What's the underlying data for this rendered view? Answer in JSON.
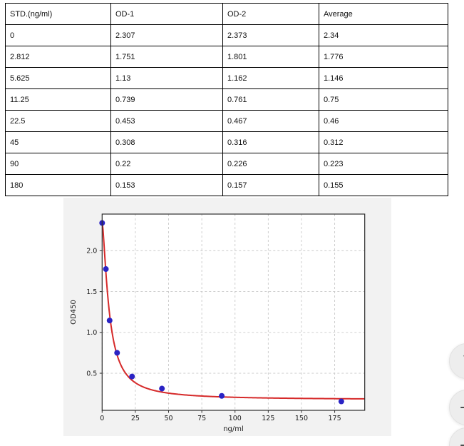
{
  "table": {
    "headers": [
      "STD.(ng/ml)",
      "OD-1",
      "OD-2",
      "Average"
    ],
    "rows": [
      [
        "0",
        "2.307",
        "2.373",
        "2.34"
      ],
      [
        "2.812",
        "1.751",
        "1.801",
        "1.776"
      ],
      [
        "5.625",
        "1.13",
        "1.162",
        "1.146"
      ],
      [
        "11.25",
        "0.739",
        "0.761",
        "0.75"
      ],
      [
        "22.5",
        "0.453",
        "0.467",
        "0.46"
      ],
      [
        "45",
        "0.308",
        "0.316",
        "0.312"
      ],
      [
        "90",
        "0.22",
        "0.226",
        "0.223"
      ],
      [
        "180",
        "0.153",
        "0.157",
        "0.155"
      ]
    ]
  },
  "chart_data": {
    "type": "scatter",
    "title": "",
    "xlabel": "ng/ml",
    "ylabel": "OD450",
    "xlim": [
      0,
      197.6
    ],
    "ylim": [
      0.046,
      2.449
    ],
    "x_ticks": [
      0,
      25,
      50,
      75,
      100,
      125,
      150,
      175
    ],
    "y_ticks": [
      0.5,
      1.0,
      1.5,
      2.0
    ],
    "grid": true,
    "legend_position": "none",
    "points": [
      [
        0,
        2.34
      ],
      [
        2.812,
        1.776
      ],
      [
        5.625,
        1.146
      ],
      [
        11.25,
        0.75
      ],
      [
        22.5,
        0.46
      ],
      [
        45,
        0.312
      ],
      [
        90,
        0.223
      ],
      [
        180,
        0.155
      ]
    ],
    "fit_curve": {
      "model": "4PL",
      "a": 2.36,
      "b": 1.45,
      "c": 5.3,
      "d": 0.175
    },
    "colors": {
      "figure_bg": "#f2f2f2",
      "plot_bg": "#ffffff",
      "grid": "#c9c9c9",
      "spine": "#2e2e2e",
      "point": "#2a23c4",
      "curve": "#d62a2a",
      "text": "#1a1a1a"
    }
  },
  "controls": {
    "buttons": [
      {
        "label": "",
        "icon": "collapse-arrows-icon"
      },
      {
        "label": "",
        "icon": "minus-icon"
      },
      {
        "label": "",
        "icon": "minus-icon"
      }
    ]
  }
}
